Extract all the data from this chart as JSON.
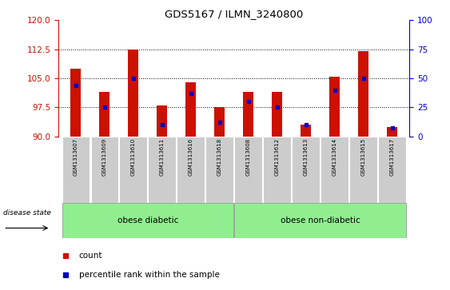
{
  "title": "GDS5167 / ILMN_3240800",
  "samples": [
    "GSM1313607",
    "GSM1313609",
    "GSM1313610",
    "GSM1313611",
    "GSM1313616",
    "GSM1313618",
    "GSM1313608",
    "GSM1313612",
    "GSM1313613",
    "GSM1313614",
    "GSM1313615",
    "GSM1313617"
  ],
  "bar_heights": [
    107.5,
    101.5,
    112.5,
    98.0,
    104.0,
    97.5,
    101.5,
    101.5,
    93.0,
    105.5,
    112.0,
    92.5
  ],
  "percentile_ranks": [
    44,
    25,
    50,
    10,
    37,
    12,
    30,
    25,
    10,
    40,
    50,
    7
  ],
  "ymin": 90,
  "ymax": 120,
  "yticks_left": [
    90,
    97.5,
    105,
    112.5,
    120
  ],
  "yticks_right": [
    0,
    25,
    50,
    75,
    100
  ],
  "bar_color": "#cc1100",
  "percentile_color": "#0000cc",
  "group1_label": "obese diabetic",
  "group2_label": "obese non-diabetic",
  "group1_count": 6,
  "group2_count": 6,
  "disease_state_label": "disease state",
  "legend_count": "count",
  "legend_percentile": "percentile rank within the sample",
  "background_color": "#ffffff",
  "bar_width": 0.35,
  "group_bg_color": "#90ee90",
  "tick_label_bg": "#cccccc"
}
